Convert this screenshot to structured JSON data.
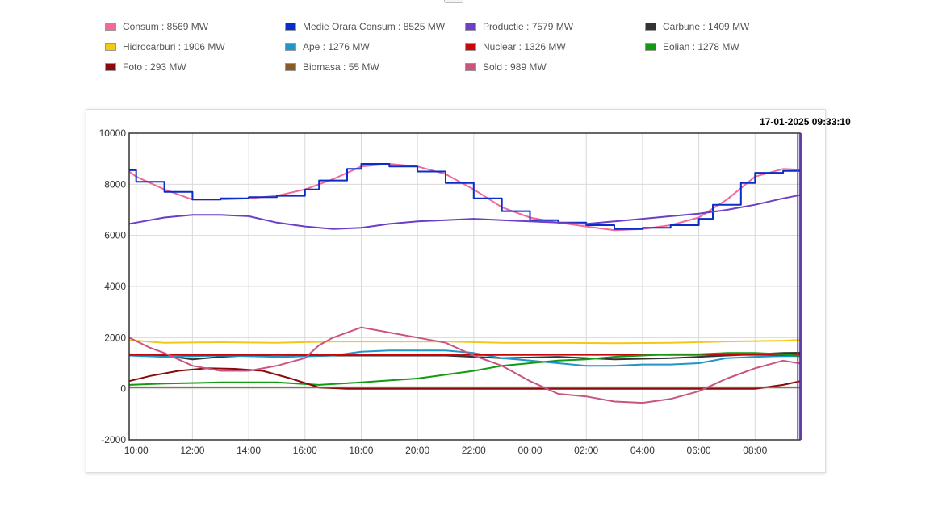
{
  "timestamp": "17-01-2025 09:33:10",
  "legend": [
    {
      "label": "Consum : 8569 MW",
      "color": "#f06b9c"
    },
    {
      "label": "Medie Orara Consum : 8525 MW",
      "color": "#0a2cc8"
    },
    {
      "label": "Productie : 7579 MW",
      "color": "#6b3fc7"
    },
    {
      "label": "Carbune : 1409 MW",
      "color": "#333333"
    },
    {
      "label": "Hidrocarburi : 1906 MW",
      "color": "#f3c913"
    },
    {
      "label": "Ape : 1276 MW",
      "color": "#1f95c8"
    },
    {
      "label": "Nuclear : 1326 MW",
      "color": "#c8070b"
    },
    {
      "label": "Eolian : 1278 MW",
      "color": "#119a12"
    },
    {
      "label": "Foto : 293 MW",
      "color": "#8a0a0a"
    },
    {
      "label": "Biomasa : 55 MW",
      "color": "#8b5a2b"
    },
    {
      "label": "Sold : 989 MW",
      "color": "#c85580"
    }
  ],
  "chart_data": {
    "type": "line",
    "ylim": [
      -2000,
      10000
    ],
    "yticks": [
      -2000,
      0,
      2000,
      4000,
      6000,
      8000,
      10000
    ],
    "x_range_hours": [
      9.75,
      33.6
    ],
    "xticks": [
      {
        "h": 10,
        "label": "10:00"
      },
      {
        "h": 12,
        "label": "12:00"
      },
      {
        "h": 14,
        "label": "14:00"
      },
      {
        "h": 16,
        "label": "16:00"
      },
      {
        "h": 18,
        "label": "18:00"
      },
      {
        "h": 20,
        "label": "20:00"
      },
      {
        "h": 22,
        "label": "22:00"
      },
      {
        "h": 24,
        "label": "00:00"
      },
      {
        "h": 26,
        "label": "02:00"
      },
      {
        "h": 28,
        "label": "04:00"
      },
      {
        "h": 30,
        "label": "06:00"
      },
      {
        "h": 32,
        "label": "08:00"
      }
    ],
    "grid": true,
    "current_time_hours": 33.55,
    "series": [
      {
        "name": "Consum",
        "color": "#f06b9c",
        "x": [
          9.75,
          10,
          11,
          12,
          13,
          14,
          15,
          16,
          17,
          18,
          19,
          20,
          21,
          22,
          23,
          24,
          25,
          26,
          27,
          28,
          29,
          30,
          31,
          32,
          33,
          33.6
        ],
        "y": [
          8500,
          8300,
          7800,
          7400,
          7400,
          7450,
          7550,
          7800,
          8200,
          8700,
          8800,
          8700,
          8400,
          7800,
          7100,
          6700,
          6500,
          6350,
          6200,
          6250,
          6400,
          6700,
          7400,
          8300,
          8600,
          8569
        ]
      },
      {
        "name": "Medie Orara Consum",
        "color": "#0a2cc8",
        "step": true,
        "x": [
          9.75,
          10,
          10.5,
          11,
          12,
          13,
          14,
          15,
          16,
          16.5,
          17,
          17.5,
          18,
          19,
          20,
          21,
          21.5,
          22,
          23,
          24,
          25,
          26,
          27,
          28,
          29,
          30,
          30.5,
          31,
          31.5,
          32,
          33,
          33.6
        ],
        "y": [
          8550,
          8100,
          8100,
          7700,
          7400,
          7450,
          7500,
          7550,
          7800,
          8150,
          8150,
          8600,
          8800,
          8700,
          8500,
          8050,
          8050,
          7450,
          6950,
          6600,
          6500,
          6400,
          6250,
          6300,
          6400,
          6650,
          7200,
          7200,
          8050,
          8450,
          8525,
          8525
        ]
      },
      {
        "name": "Productie",
        "color": "#6b3fc7",
        "x": [
          9.75,
          10,
          11,
          12,
          13,
          14,
          15,
          16,
          17,
          18,
          19,
          20,
          21,
          22,
          23,
          24,
          25,
          26,
          27,
          28,
          29,
          30,
          31,
          32,
          33,
          33.6
        ],
        "y": [
          6450,
          6500,
          6700,
          6800,
          6800,
          6750,
          6500,
          6350,
          6250,
          6300,
          6450,
          6550,
          6600,
          6650,
          6600,
          6550,
          6500,
          6450,
          6550,
          6650,
          6750,
          6850,
          7000,
          7200,
          7450,
          7579
        ]
      },
      {
        "name": "Hidrocarburi",
        "color": "#f3c913",
        "x": [
          9.75,
          11,
          13,
          15,
          17,
          19,
          21,
          23,
          25,
          27,
          29,
          31,
          33,
          33.6
        ],
        "y": [
          1900,
          1800,
          1820,
          1800,
          1850,
          1850,
          1850,
          1800,
          1800,
          1780,
          1800,
          1850,
          1880,
          1906
        ]
      },
      {
        "name": "Carbune",
        "color": "#333333",
        "x": [
          9.75,
          11,
          12,
          13,
          14,
          15,
          17,
          19,
          21,
          23,
          25,
          27,
          29,
          31,
          33,
          33.6
        ],
        "y": [
          1350,
          1300,
          1150,
          1250,
          1300,
          1250,
          1300,
          1300,
          1300,
          1200,
          1250,
          1150,
          1200,
          1300,
          1400,
          1409
        ]
      },
      {
        "name": "Ape",
        "color": "#1f95c8",
        "x": [
          9.75,
          11,
          13,
          15,
          17,
          18,
          19,
          21,
          22,
          23,
          24,
          25,
          26,
          27,
          28,
          29,
          30,
          31,
          32,
          33,
          33.6
        ],
        "y": [
          1300,
          1250,
          1300,
          1250,
          1300,
          1450,
          1500,
          1500,
          1400,
          1200,
          1100,
          1000,
          900,
          900,
          950,
          950,
          1000,
          1200,
          1250,
          1280,
          1276
        ]
      },
      {
        "name": "Nuclear",
        "color": "#c8070b",
        "x": [
          9.75,
          15,
          20,
          25,
          30,
          33.6
        ],
        "y": [
          1330,
          1320,
          1320,
          1330,
          1330,
          1326
        ]
      },
      {
        "name": "Eolian",
        "color": "#119a12",
        "x": [
          9.75,
          11,
          13,
          15,
          16.5,
          18,
          20,
          22,
          23,
          24,
          25,
          26,
          27,
          28,
          29,
          30,
          31,
          32,
          33,
          33.6
        ],
        "y": [
          150,
          200,
          250,
          250,
          150,
          250,
          400,
          700,
          900,
          1000,
          1100,
          1150,
          1250,
          1300,
          1350,
          1350,
          1400,
          1400,
          1350,
          1278
        ]
      },
      {
        "name": "Foto",
        "color": "#8a0a0a",
        "x": [
          9.75,
          10.5,
          11.5,
          12.5,
          13.5,
          14.5,
          15.5,
          16.5,
          17.5,
          18.5,
          20,
          25,
          30,
          32,
          33,
          33.6
        ],
        "y": [
          300,
          500,
          700,
          800,
          780,
          700,
          400,
          50,
          0,
          0,
          0,
          0,
          0,
          0,
          150,
          293
        ]
      },
      {
        "name": "Biomasa",
        "color": "#8b5a2b",
        "x": [
          9.75,
          20,
          33.6
        ],
        "y": [
          55,
          55,
          55
        ]
      },
      {
        "name": "Sold",
        "color": "#c85580",
        "x": [
          9.75,
          10.5,
          11,
          12,
          13,
          14,
          15,
          16,
          16.5,
          17,
          18,
          19,
          20,
          21,
          22,
          23,
          24,
          25,
          26,
          27,
          28,
          29,
          30,
          31,
          32,
          33,
          33.6
        ],
        "y": [
          2000,
          1600,
          1400,
          900,
          700,
          700,
          900,
          1200,
          1700,
          2000,
          2400,
          2200,
          2000,
          1800,
          1300,
          900,
          300,
          -200,
          -300,
          -500,
          -550,
          -400,
          -100,
          400,
          800,
          1100,
          989
        ]
      }
    ]
  }
}
